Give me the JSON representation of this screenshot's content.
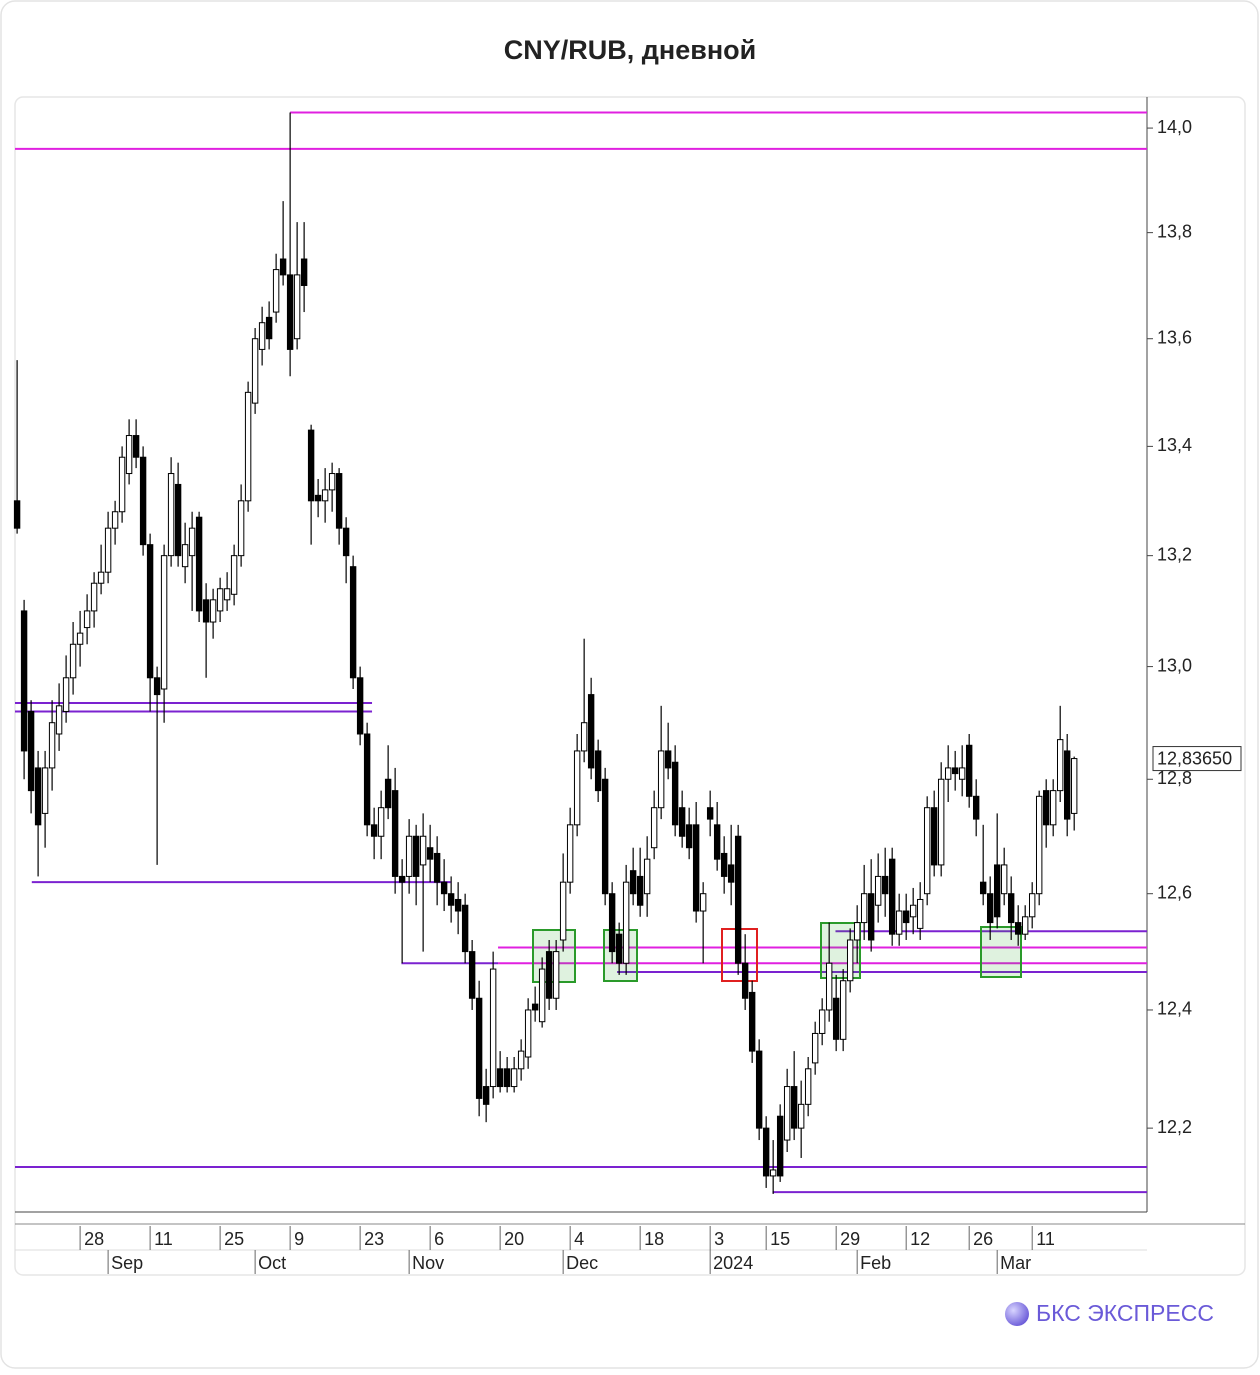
{
  "chart_data": {
    "type": "candlestick",
    "title": "CNY/RUB, дневной",
    "logo": "БКС ЭКСПРЕСС",
    "log_scale": true,
    "up_color": "#ffffff",
    "down_color": "#000000",
    "ylim": [
      12.06,
      14.06
    ],
    "yticks": [
      {
        "value": 12.2,
        "label": "12,2"
      },
      {
        "value": 12.4,
        "label": "12,4"
      },
      {
        "value": 12.6,
        "label": "12,6"
      },
      {
        "value": 12.8,
        "label": "12,8"
      },
      {
        "value": 13.0,
        "label": "13,0"
      },
      {
        "value": 13.2,
        "label": "13,2"
      },
      {
        "value": 13.4,
        "label": "13,4"
      },
      {
        "value": 13.6,
        "label": "13,6"
      },
      {
        "value": 13.8,
        "label": "13,8"
      },
      {
        "value": 14.0,
        "label": "14,0"
      }
    ],
    "xlim": [
      -0.3,
      161.4
    ],
    "xticks": [
      {
        "value": 9,
        "label": "28"
      },
      {
        "value": 19,
        "label": "11"
      },
      {
        "value": 29,
        "label": "25"
      },
      {
        "value": 39,
        "label": "9"
      },
      {
        "value": 49,
        "label": "23"
      },
      {
        "value": 59,
        "label": "6"
      },
      {
        "value": 69,
        "label": "20"
      },
      {
        "value": 79,
        "label": "4"
      },
      {
        "value": 89,
        "label": "18"
      },
      {
        "value": 99,
        "label": "3"
      },
      {
        "value": 107,
        "label": "15"
      },
      {
        "value": 117,
        "label": "29"
      },
      {
        "value": 127,
        "label": "12"
      },
      {
        "value": 136,
        "label": "26"
      },
      {
        "value": 145,
        "label": "11"
      }
    ],
    "month_ticks": [
      {
        "value": 13,
        "label": "Sep"
      },
      {
        "value": 34,
        "label": "Oct"
      },
      {
        "value": 56,
        "label": "Nov"
      },
      {
        "value": 78,
        "label": "Dec"
      },
      {
        "value": 99,
        "label": "2024"
      },
      {
        "value": 120,
        "label": "Feb"
      },
      {
        "value": 140,
        "label": "Mar"
      }
    ],
    "last_price": {
      "value": 12.8365,
      "label": "12,83650"
    },
    "levels": [
      {
        "value": 14.03,
        "color": "#e020e0",
        "from": 39,
        "to": 161.4
      },
      {
        "value": 13.96,
        "color": "#e020e0",
        "from": -0.3,
        "to": 161.4
      },
      {
        "value": 12.935,
        "color": "#7b22d0",
        "from": -0.3,
        "to": 50.7
      },
      {
        "value": 12.92,
        "color": "#7b22d0",
        "from": -0.3,
        "to": 50.7
      },
      {
        "value": 12.62,
        "color": "#7b22d0",
        "from": 2.1,
        "to": 61.9
      },
      {
        "value": 12.48,
        "color": "#7b22d0",
        "from": 54.9,
        "to": 68.7
      },
      {
        "value": 12.507,
        "color": "#e020e0",
        "from": 68.7,
        "to": 161.4
      },
      {
        "value": 12.48,
        "color": "#e020e0",
        "from": 68.7,
        "to": 161.4
      },
      {
        "value": 12.465,
        "color": "#7b22d0",
        "from": 85.7,
        "to": 161.4
      },
      {
        "value": 12.535,
        "color": "#7b22d0",
        "from": 116.9,
        "to": 161.4
      },
      {
        "value": 12.135,
        "color": "#7b22d0",
        "from": -0.3,
        "to": 161.4
      },
      {
        "value": 12.093,
        "color": "#7b22d0",
        "from": 107.9,
        "to": 161.4
      }
    ],
    "ohlc": [
      [
        13.3,
        13.56,
        13.24,
        13.25
      ],
      [
        13.1,
        13.12,
        12.8,
        12.85
      ],
      [
        12.92,
        12.94,
        12.74,
        12.78
      ],
      [
        12.82,
        12.85,
        12.63,
        12.72
      ],
      [
        12.74,
        12.85,
        12.68,
        12.82
      ],
      [
        12.82,
        12.94,
        12.78,
        12.9
      ],
      [
        12.88,
        12.97,
        12.85,
        12.93
      ],
      [
        12.92,
        13.02,
        12.9,
        12.98
      ],
      [
        12.98,
        13.08,
        12.95,
        13.04
      ],
      [
        13.04,
        13.1,
        13.0,
        13.06
      ],
      [
        13.07,
        13.13,
        13.04,
        13.1
      ],
      [
        13.1,
        13.17,
        13.07,
        13.15
      ],
      [
        13.15,
        13.22,
        13.13,
        13.17
      ],
      [
        13.17,
        13.28,
        13.15,
        13.25
      ],
      [
        13.25,
        13.3,
        13.22,
        13.28
      ],
      [
        13.28,
        13.4,
        13.26,
        13.38
      ],
      [
        13.35,
        13.45,
        13.33,
        13.42
      ],
      [
        13.42,
        13.45,
        13.36,
        13.38
      ],
      [
        13.38,
        13.4,
        13.2,
        13.22
      ],
      [
        13.22,
        13.24,
        12.92,
        12.98
      ],
      [
        12.98,
        13.0,
        12.65,
        12.95
      ],
      [
        12.96,
        13.22,
        12.9,
        13.2
      ],
      [
        13.2,
        13.38,
        13.18,
        13.35
      ],
      [
        13.33,
        13.37,
        13.18,
        13.2
      ],
      [
        13.18,
        13.26,
        13.15,
        13.22
      ],
      [
        13.2,
        13.28,
        13.1,
        13.25
      ],
      [
        13.27,
        13.28,
        13.08,
        13.1
      ],
      [
        13.12,
        13.15,
        12.98,
        13.08
      ],
      [
        13.08,
        13.14,
        13.05,
        13.12
      ],
      [
        13.1,
        13.16,
        13.08,
        13.14
      ],
      [
        13.12,
        13.17,
        13.1,
        13.14
      ],
      [
        13.13,
        13.22,
        13.11,
        13.2
      ],
      [
        13.2,
        13.33,
        13.18,
        13.3
      ],
      [
        13.3,
        13.52,
        13.28,
        13.5
      ],
      [
        13.48,
        13.62,
        13.46,
        13.6
      ],
      [
        13.58,
        13.66,
        13.55,
        13.63
      ],
      [
        13.64,
        13.67,
        13.58,
        13.6
      ],
      [
        13.65,
        13.76,
        13.63,
        13.73
      ],
      [
        13.75,
        13.86,
        13.7,
        13.72
      ],
      [
        13.72,
        14.03,
        13.53,
        13.58
      ],
      [
        13.6,
        13.82,
        13.58,
        13.72
      ],
      [
        13.75,
        13.82,
        13.65,
        13.7
      ],
      [
        13.43,
        13.44,
        13.22,
        13.3
      ],
      [
        13.31,
        13.34,
        13.27,
        13.3
      ],
      [
        13.3,
        13.36,
        13.26,
        13.32
      ],
      [
        13.32,
        13.37,
        13.28,
        13.35
      ],
      [
        13.35,
        13.36,
        13.22,
        13.25
      ],
      [
        13.25,
        13.27,
        13.15,
        13.2
      ],
      [
        13.18,
        13.2,
        12.96,
        12.98
      ],
      [
        12.98,
        13.0,
        12.86,
        12.88
      ],
      [
        12.88,
        12.9,
        12.7,
        12.72
      ],
      [
        12.72,
        12.75,
        12.66,
        12.7
      ],
      [
        12.7,
        12.78,
        12.66,
        12.75
      ],
      [
        12.8,
        12.86,
        12.73,
        12.75
      ],
      [
        12.78,
        12.82,
        12.6,
        12.63
      ],
      [
        12.63,
        12.66,
        12.48,
        12.62
      ],
      [
        12.63,
        12.73,
        12.6,
        12.7
      ],
      [
        12.7,
        12.72,
        12.58,
        12.63
      ],
      [
        12.65,
        12.74,
        12.5,
        12.7
      ],
      [
        12.68,
        12.72,
        12.62,
        12.66
      ],
      [
        12.67,
        12.7,
        12.58,
        12.62
      ],
      [
        12.62,
        12.66,
        12.57,
        12.6
      ],
      [
        12.6,
        12.63,
        12.55,
        12.58
      ],
      [
        12.59,
        12.62,
        12.53,
        12.57
      ],
      [
        12.58,
        12.6,
        12.48,
        12.5
      ],
      [
        12.5,
        12.52,
        12.4,
        12.42
      ],
      [
        12.42,
        12.45,
        12.22,
        12.25
      ],
      [
        12.27,
        12.3,
        12.21,
        12.24
      ],
      [
        12.27,
        12.5,
        12.25,
        12.47
      ],
      [
        12.3,
        12.33,
        12.26,
        12.27
      ],
      [
        12.3,
        12.32,
        12.26,
        12.27
      ],
      [
        12.27,
        12.32,
        12.26,
        12.3
      ],
      [
        12.3,
        12.35,
        12.28,
        12.33
      ],
      [
        12.32,
        12.42,
        12.3,
        12.4
      ],
      [
        12.41,
        12.44,
        12.38,
        12.4
      ],
      [
        12.38,
        12.49,
        12.37,
        12.47
      ],
      [
        12.5,
        12.52,
        12.4,
        12.42
      ],
      [
        12.42,
        12.52,
        12.4,
        12.5
      ],
      [
        12.52,
        12.67,
        12.5,
        12.62
      ],
      [
        12.62,
        12.75,
        12.6,
        12.72
      ],
      [
        12.72,
        12.88,
        12.7,
        12.85
      ],
      [
        12.85,
        13.05,
        12.83,
        12.9
      ],
      [
        12.95,
        12.98,
        12.8,
        12.82
      ],
      [
        12.85,
        12.87,
        12.76,
        12.78
      ],
      [
        12.8,
        12.82,
        12.58,
        12.6
      ],
      [
        12.6,
        12.62,
        12.48,
        12.5
      ],
      [
        12.53,
        12.55,
        12.46,
        12.48
      ],
      [
        12.48,
        12.65,
        12.46,
        12.62
      ],
      [
        12.64,
        12.68,
        12.58,
        12.6
      ],
      [
        12.63,
        12.68,
        12.56,
        12.58
      ],
      [
        12.6,
        12.7,
        12.56,
        12.66
      ],
      [
        12.68,
        12.78,
        12.66,
        12.75
      ],
      [
        12.75,
        12.93,
        12.73,
        12.85
      ],
      [
        12.85,
        12.9,
        12.8,
        12.82
      ],
      [
        12.83,
        12.86,
        12.7,
        12.72
      ],
      [
        12.75,
        12.78,
        12.68,
        12.7
      ],
      [
        12.72,
        12.75,
        12.66,
        12.68
      ],
      [
        12.72,
        12.76,
        12.55,
        12.57
      ],
      [
        12.57,
        12.62,
        12.48,
        12.6
      ],
      [
        12.75,
        12.78,
        12.7,
        12.73
      ],
      [
        12.72,
        12.76,
        12.64,
        12.66
      ],
      [
        12.67,
        12.7,
        12.6,
        12.63
      ],
      [
        12.65,
        12.72,
        12.58,
        12.62
      ],
      [
        12.7,
        12.72,
        12.46,
        12.48
      ],
      [
        12.48,
        12.53,
        12.4,
        12.42
      ],
      [
        12.43,
        12.45,
        12.31,
        12.33
      ],
      [
        12.33,
        12.35,
        12.18,
        12.2
      ],
      [
        12.2,
        12.22,
        12.1,
        12.12
      ],
      [
        12.12,
        12.18,
        12.09,
        12.13
      ],
      [
        12.22,
        12.24,
        12.11,
        12.12
      ],
      [
        12.18,
        12.3,
        12.16,
        12.27
      ],
      [
        12.27,
        12.33,
        12.18,
        12.2
      ],
      [
        12.2,
        12.28,
        12.15,
        12.24
      ],
      [
        12.24,
        12.32,
        12.22,
        12.3
      ],
      [
        12.31,
        12.38,
        12.29,
        12.36
      ],
      [
        12.36,
        12.42,
        12.34,
        12.4
      ],
      [
        12.4,
        12.55,
        12.38,
        12.48
      ],
      [
        12.42,
        12.46,
        12.33,
        12.35
      ],
      [
        12.35,
        12.47,
        12.33,
        12.45
      ],
      [
        12.45,
        12.54,
        12.43,
        12.52
      ],
      [
        12.52,
        12.58,
        12.48,
        12.55
      ],
      [
        12.55,
        12.65,
        12.52,
        12.6
      ],
      [
        12.6,
        12.66,
        12.5,
        12.52
      ],
      [
        12.58,
        12.67,
        12.55,
        12.63
      ],
      [
        12.63,
        12.68,
        12.56,
        12.6
      ],
      [
        12.66,
        12.68,
        12.51,
        12.53
      ],
      [
        12.53,
        12.6,
        12.51,
        12.57
      ],
      [
        12.57,
        12.6,
        12.52,
        12.55
      ],
      [
        12.56,
        12.61,
        12.53,
        12.58
      ],
      [
        12.54,
        12.62,
        12.52,
        12.59
      ],
      [
        12.6,
        12.77,
        12.58,
        12.75
      ],
      [
        12.75,
        12.78,
        12.63,
        12.65
      ],
      [
        12.65,
        12.83,
        12.63,
        12.8
      ],
      [
        12.8,
        12.86,
        12.76,
        12.82
      ],
      [
        12.82,
        12.85,
        12.78,
        12.81
      ],
      [
        12.8,
        12.86,
        12.77,
        12.82
      ],
      [
        12.86,
        12.88,
        12.75,
        12.77
      ],
      [
        12.77,
        12.8,
        12.7,
        12.73
      ],
      [
        12.62,
        12.72,
        12.58,
        12.6
      ],
      [
        12.6,
        12.63,
        12.52,
        12.55
      ],
      [
        12.65,
        12.74,
        12.54,
        12.56
      ],
      [
        12.6,
        12.68,
        12.58,
        12.65
      ],
      [
        12.6,
        12.63,
        12.52,
        12.55
      ],
      [
        12.55,
        12.58,
        12.51,
        12.53
      ],
      [
        12.53,
        12.58,
        12.52,
        12.56
      ],
      [
        12.56,
        12.62,
        12.54,
        12.6
      ],
      [
        12.6,
        12.78,
        12.58,
        12.77
      ],
      [
        12.78,
        12.8,
        12.68,
        12.72
      ],
      [
        12.72,
        12.8,
        12.7,
        12.78
      ],
      [
        12.78,
        12.93,
        12.76,
        12.87
      ],
      [
        12.85,
        12.88,
        12.7,
        12.73
      ],
      [
        12.74,
        12.84,
        12.71,
        12.8365
      ]
    ]
  }
}
